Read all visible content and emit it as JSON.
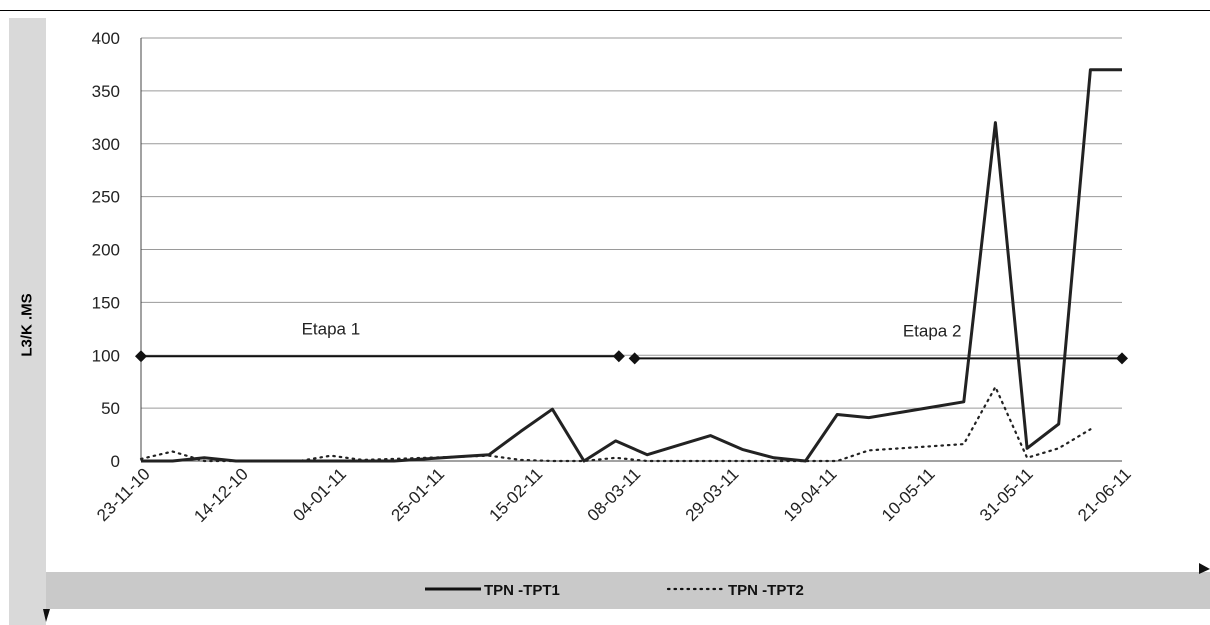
{
  "chart_data": {
    "type": "line",
    "title": "",
    "xlabel": "",
    "ylabel": "L3/K .MS",
    "ylim": [
      0,
      400
    ],
    "yticks": [
      0,
      50,
      100,
      150,
      200,
      250,
      300,
      350,
      400
    ],
    "grid": true,
    "legend_position": "bottom",
    "x_tick_labels": [
      "23-11-10",
      "14-12-10",
      "04-01-11",
      "25-01-11",
      "15-02-11",
      "08-03-11",
      "29-03-11",
      "19-04-11",
      "10-05-11",
      "31-05-11",
      "21-06-11"
    ],
    "x_range": [
      0,
      31
    ],
    "series": [
      {
        "name": "TPN -TPT1",
        "style": "solid",
        "color": "#222222",
        "x": [
          0,
          1,
          2,
          3,
          4,
          5,
          6,
          7,
          8,
          9,
          10,
          11,
          12,
          13,
          14,
          15,
          16,
          17,
          18,
          19,
          20,
          21,
          22,
          23,
          24,
          25,
          26,
          27,
          28,
          29,
          30,
          31
        ],
        "values": [
          0,
          0,
          3,
          0,
          0,
          0,
          0,
          0,
          0,
          2,
          4,
          6,
          28,
          49,
          0,
          19,
          6,
          15,
          24,
          11,
          3,
          0,
          44,
          41,
          46,
          51,
          56,
          320,
          12,
          35,
          370,
          370
        ]
      },
      {
        "name": "TPN -TPT2",
        "style": "dotted",
        "color": "#222222",
        "x": [
          0,
          1,
          2,
          3,
          4,
          5,
          6,
          7,
          8,
          9,
          10,
          11,
          12,
          13,
          14,
          15,
          16,
          17,
          18,
          19,
          20,
          21,
          22,
          23,
          24,
          25,
          26,
          27,
          28,
          29,
          30
        ],
        "values": [
          2,
          9,
          0,
          0,
          0,
          0,
          5,
          1,
          2,
          3,
          4,
          5,
          1,
          0,
          0,
          3,
          0,
          0,
          0,
          0,
          0,
          0,
          0,
          10,
          12,
          14,
          16,
          70,
          3,
          12,
          30
        ]
      }
    ],
    "stages": [
      {
        "label": "Etapa 1",
        "x_start": 0,
        "x_end": 15.1,
        "y": 99,
        "label_x": 6
      },
      {
        "label": "Etapa 2",
        "x_start": 15.6,
        "x_end": 31,
        "y": 97,
        "label_x": 25
      }
    ]
  },
  "legend": {
    "items": [
      {
        "label": "TPN -TPT1",
        "style": "solid"
      },
      {
        "label": "TPN -TPT2",
        "style": "dotted"
      }
    ]
  }
}
